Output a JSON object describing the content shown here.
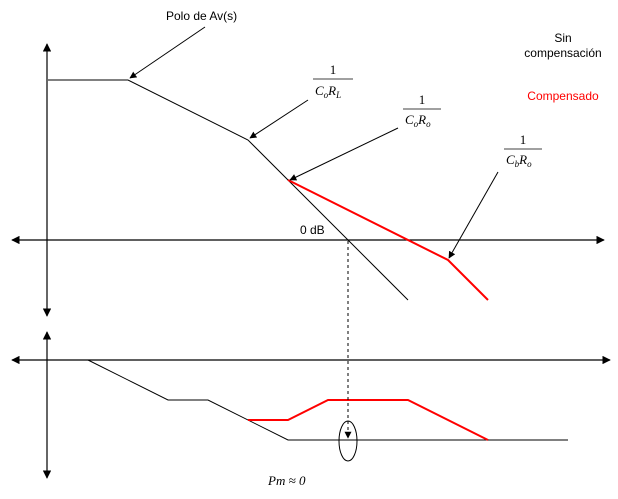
{
  "labels": {
    "polo": "Polo de Av(s)",
    "sin_comp_line1": "Sin",
    "sin_comp_line2": "compensación",
    "compensado": "Compensado",
    "zero_db": "0 dB",
    "pm": "Pm ≈ 0"
  },
  "fractions": {
    "f1": {
      "num": "1",
      "den_main": "C",
      "den_sub1": "o",
      "den_main2": "R",
      "den_sub2": "L"
    },
    "f2": {
      "num": "1",
      "den_main": "C",
      "den_sub1": "o",
      "den_main2": "R",
      "den_sub2": "o"
    },
    "f3": {
      "num": "1",
      "den_main": "C",
      "den_sub1": "b",
      "den_main2": "R",
      "den_sub2": "o"
    }
  },
  "colors": {
    "black": "#000000",
    "compensated": "#ff0000"
  }
}
